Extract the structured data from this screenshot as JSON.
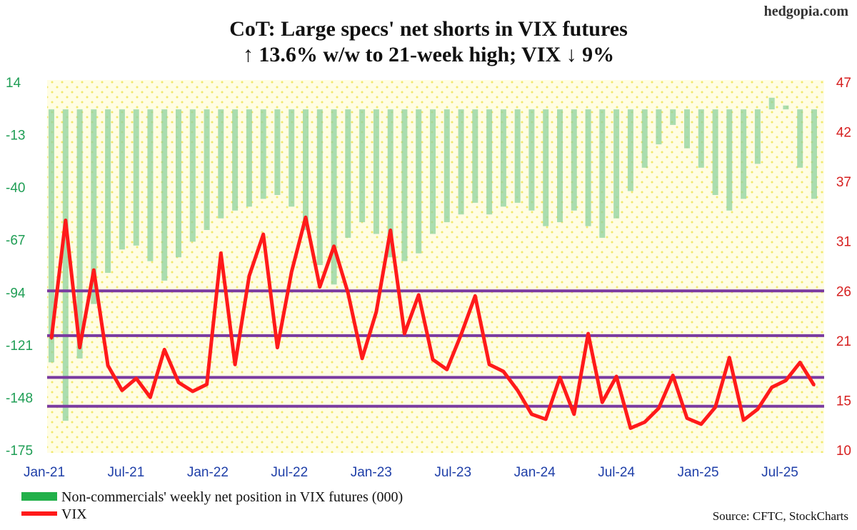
{
  "brand": "hedgopia.com",
  "source": "Source: CFTC, StockCharts",
  "chart_data": {
    "type": "bar+line",
    "title": "CoT: Large specs' net shorts in VIX futures",
    "subtitle": "↑ 13.6% w/w to 21-week high; VIX ↓ 9%",
    "left_axis": {
      "ticks": [
        14,
        -13,
        -40,
        -67,
        -94,
        -121,
        -148,
        -175
      ],
      "range": [
        -175,
        14
      ]
    },
    "right_axis": {
      "ticks": [
        47,
        42,
        37,
        31,
        26,
        21,
        15,
        10
      ],
      "range": [
        10,
        47
      ]
    },
    "x_ticks": [
      "Jan-21",
      "Jul-21",
      "Jan-22",
      "Jul-22",
      "Jan-23",
      "Jul-23",
      "Jan-24",
      "Jul-24",
      "Jan-25",
      "Jul-25"
    ],
    "bar_baseline": 0,
    "grid": "dotted",
    "legend_position": "bottom-left",
    "colors": {
      "bars": "#8fd19e",
      "line": "#ff1a1a",
      "levels": "#7a3aa0",
      "background": "#fffde3",
      "dots": "#f2e86a"
    },
    "horizontal_levels_vix": [
      26,
      21.5,
      17.3,
      14.4
    ],
    "series": [
      {
        "name": "Non-commercials' weekly net position in VIX futures (000)",
        "type": "bar",
        "axis": "left",
        "points": [
          [
            "Jan-21",
            -130
          ],
          [
            "Feb-21",
            -160
          ],
          [
            "Mar-21",
            -128
          ],
          [
            "Apr-21",
            -100
          ],
          [
            "May-21",
            -84
          ],
          [
            "Jun-21",
            -72
          ],
          [
            "Jul-21",
            -70
          ],
          [
            "Aug-21",
            -78
          ],
          [
            "Sep-21",
            -88
          ],
          [
            "Oct-21",
            -76
          ],
          [
            "Nov-21",
            -68
          ],
          [
            "Dec-21",
            -62
          ],
          [
            "Jan-22",
            -56
          ],
          [
            "Feb-22",
            -52
          ],
          [
            "Mar-22",
            -50
          ],
          [
            "Apr-22",
            -46
          ],
          [
            "May-22",
            -44
          ],
          [
            "Jun-22",
            -50
          ],
          [
            "Jul-22",
            -62
          ],
          [
            "Aug-22",
            -80
          ],
          [
            "Sep-22",
            -90
          ],
          [
            "Oct-22",
            -66
          ],
          [
            "Nov-22",
            -58
          ],
          [
            "Dec-22",
            -64
          ],
          [
            "Jan-23",
            -76
          ],
          [
            "Feb-23",
            -78
          ],
          [
            "Mar-23",
            -74
          ],
          [
            "Apr-23",
            -64
          ],
          [
            "May-23",
            -58
          ],
          [
            "Jun-23",
            -54
          ],
          [
            "Jul-23",
            -48
          ],
          [
            "Aug-23",
            -54
          ],
          [
            "Sep-23",
            -50
          ],
          [
            "Oct-23",
            -48
          ],
          [
            "Nov-23",
            -52
          ],
          [
            "Dec-23",
            -60
          ],
          [
            "Jan-24",
            -58
          ],
          [
            "Feb-24",
            -52
          ],
          [
            "Mar-24",
            -60
          ],
          [
            "Apr-24",
            -66
          ],
          [
            "May-24",
            -56
          ],
          [
            "Jun-24",
            -42
          ],
          [
            "Jul-24",
            -30
          ],
          [
            "Aug-24",
            -18
          ],
          [
            "Sep-24",
            -8
          ],
          [
            "Oct-24",
            -20
          ],
          [
            "Nov-24",
            -30
          ],
          [
            "Dec-24",
            -44
          ],
          [
            "Jan-25",
            -52
          ],
          [
            "Feb-25",
            -46
          ],
          [
            "Mar-25",
            -28
          ],
          [
            "Apr-25",
            6
          ],
          [
            "May-25",
            2
          ],
          [
            "Jun-25",
            -30
          ],
          [
            "Jul-25",
            -46
          ]
        ]
      },
      {
        "name": "VIX",
        "type": "line",
        "axis": "right",
        "points": [
          [
            "Jan-21",
            21.2
          ],
          [
            "Feb-21",
            33.1
          ],
          [
            "Mar-21",
            20.3
          ],
          [
            "Apr-21",
            28.1
          ],
          [
            "May-21",
            18.5
          ],
          [
            "Jun-21",
            16.0
          ],
          [
            "Jul-21",
            17.2
          ],
          [
            "Aug-21",
            15.3
          ],
          [
            "Sep-21",
            20.1
          ],
          [
            "Oct-21",
            16.8
          ],
          [
            "Nov-21",
            15.9
          ],
          [
            "Dec-21",
            16.6
          ],
          [
            "Jan-22",
            29.8
          ],
          [
            "Feb-22",
            18.6
          ],
          [
            "Mar-22",
            27.5
          ],
          [
            "Apr-22",
            31.7
          ],
          [
            "May-22",
            20.3
          ],
          [
            "Jun-22",
            27.9
          ],
          [
            "Jul-22",
            33.4
          ],
          [
            "Aug-22",
            26.4
          ],
          [
            "Sep-22",
            30.5
          ],
          [
            "Oct-22",
            25.8
          ],
          [
            "Nov-22",
            19.2
          ],
          [
            "Dec-22",
            23.9
          ],
          [
            "Jan-23",
            32.1
          ],
          [
            "Feb-23",
            21.7
          ],
          [
            "Mar-23",
            25.6
          ],
          [
            "Apr-23",
            19.1
          ],
          [
            "May-23",
            18.1
          ],
          [
            "Jun-23",
            21.6
          ],
          [
            "Jul-23",
            25.5
          ],
          [
            "Aug-23",
            18.6
          ],
          [
            "Sep-23",
            17.9
          ],
          [
            "Oct-23",
            16.0
          ],
          [
            "Nov-23",
            13.6
          ],
          [
            "Dec-23",
            13.1
          ],
          [
            "Jan-24",
            17.3
          ],
          [
            "Feb-24",
            13.6
          ],
          [
            "Mar-24",
            21.7
          ],
          [
            "Apr-24",
            14.8
          ],
          [
            "May-24",
            17.4
          ],
          [
            "Jun-24",
            12.2
          ],
          [
            "Jul-24",
            12.8
          ],
          [
            "Aug-24",
            14.2
          ],
          [
            "Sep-24",
            17.5
          ],
          [
            "Oct-24",
            13.2
          ],
          [
            "Nov-24",
            12.6
          ],
          [
            "Dec-24",
            14.3
          ],
          [
            "Jan-25",
            19.3
          ],
          [
            "Feb-25",
            13.0
          ],
          [
            "Mar-25",
            14.1
          ],
          [
            "Apr-25",
            16.3
          ],
          [
            "May-25",
            17.0
          ],
          [
            "Jun-25",
            18.8
          ],
          [
            "Jul-25",
            16.5
          ]
        ]
      }
    ]
  },
  "legend": [
    {
      "label": "Non-commercials' weekly net position in VIX futures (000)",
      "color": "#22b04a"
    },
    {
      "label": "VIX",
      "color": "#ff1a1a"
    }
  ]
}
